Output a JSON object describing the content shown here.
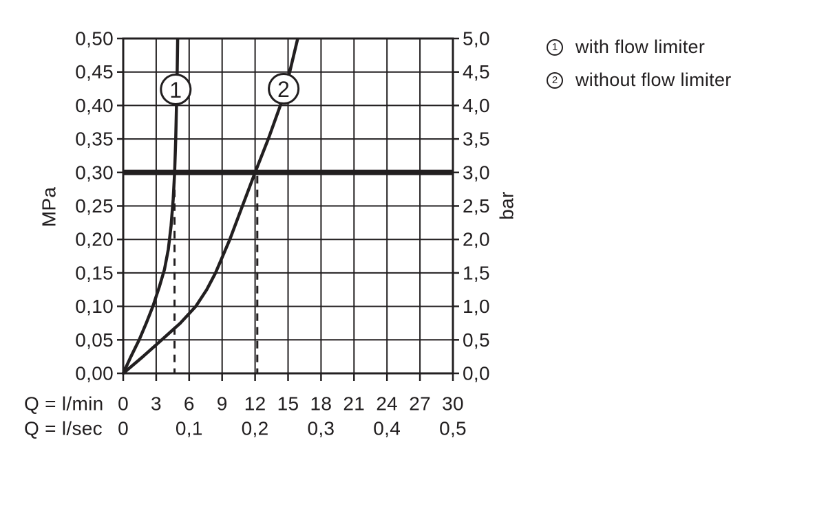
{
  "page": {
    "background": "#ffffff",
    "ink": "#221f20"
  },
  "legend": {
    "items": [
      {
        "symbol": "1",
        "label": "with flow limiter"
      },
      {
        "symbol": "2",
        "label": "without flow limiter"
      }
    ]
  },
  "chart_data": {
    "type": "line",
    "title": "",
    "grid": true,
    "legend_position": "top-right",
    "x_axis": {
      "row1_label": "Q = l/min",
      "row1_ticks": [
        {
          "x": 0,
          "label": "0"
        },
        {
          "x": 3,
          "label": "3"
        },
        {
          "x": 6,
          "label": "6"
        },
        {
          "x": 9,
          "label": "9"
        },
        {
          "x": 12,
          "label": "12"
        },
        {
          "x": 15,
          "label": "15"
        },
        {
          "x": 18,
          "label": "18"
        },
        {
          "x": 21,
          "label": "21"
        },
        {
          "x": 24,
          "label": "24"
        },
        {
          "x": 27,
          "label": "27"
        },
        {
          "x": 30,
          "label": "30"
        }
      ],
      "row2_label": "Q = l/sec",
      "row2_ticks": [
        {
          "x": 0,
          "label": "0"
        },
        {
          "x": 6,
          "label": "0,1"
        },
        {
          "x": 12,
          "label": "0,2"
        },
        {
          "x": 18,
          "label": "0,3"
        },
        {
          "x": 24,
          "label": "0,4"
        },
        {
          "x": 30,
          "label": "0,5"
        }
      ],
      "range": [
        0,
        30
      ],
      "gridline_step": 3
    },
    "y_axis_left": {
      "unit": "MPa",
      "range": [
        0,
        0.5
      ],
      "gridline_step": 0.05,
      "ticks": [
        {
          "y": 0.5,
          "label": "0,50"
        },
        {
          "y": 0.45,
          "label": "0,45"
        },
        {
          "y": 0.4,
          "label": "0,40"
        },
        {
          "y": 0.35,
          "label": "0,35"
        },
        {
          "y": 0.3,
          "label": "0,30"
        },
        {
          "y": 0.25,
          "label": "0,25"
        },
        {
          "y": 0.2,
          "label": "0,20"
        },
        {
          "y": 0.15,
          "label": "0,15"
        },
        {
          "y": 0.1,
          "label": "0,10"
        },
        {
          "y": 0.05,
          "label": "0,05"
        },
        {
          "y": 0.0,
          "label": "0,00"
        }
      ]
    },
    "y_axis_right": {
      "unit": "bar",
      "range": [
        0,
        5
      ],
      "gridline_step": 0.5,
      "ticks": [
        {
          "y": 5.0,
          "label": "5,0"
        },
        {
          "y": 4.5,
          "label": "4,5"
        },
        {
          "y": 4.0,
          "label": "4,0"
        },
        {
          "y": 3.5,
          "label": "3,5"
        },
        {
          "y": 3.0,
          "label": "3,0"
        },
        {
          "y": 2.5,
          "label": "2,5"
        },
        {
          "y": 2.0,
          "label": "2,0"
        },
        {
          "y": 1.5,
          "label": "1,5"
        },
        {
          "y": 1.0,
          "label": "1,0"
        },
        {
          "y": 0.5,
          "label": "0,5"
        },
        {
          "y": 0.0,
          "label": "0,0"
        }
      ]
    },
    "reference_line": {
      "mpa": 0.3,
      "bar": 3.0
    },
    "dashed_guides_lmin": [
      4.67,
      12.2
    ],
    "series": [
      {
        "marker": "1",
        "name": "with flow limiter",
        "flow_at_3bar_lmin": 4.7,
        "marker_pos": [
          4.78,
          0.424
        ],
        "points_lmin_mpa": [
          [
            0,
            0
          ],
          [
            0.7,
            0.025
          ],
          [
            1.45,
            0.05
          ],
          [
            2.1,
            0.075
          ],
          [
            2.7,
            0.1
          ],
          [
            3.3,
            0.13
          ],
          [
            3.75,
            0.155
          ],
          [
            4.1,
            0.185
          ],
          [
            4.35,
            0.22
          ],
          [
            4.55,
            0.26
          ],
          [
            4.68,
            0.3
          ],
          [
            4.78,
            0.35
          ],
          [
            4.85,
            0.4
          ],
          [
            4.91,
            0.45
          ],
          [
            4.96,
            0.505
          ]
        ]
      },
      {
        "marker": "2",
        "name": "without flow limiter",
        "flow_at_3bar_lmin": 12.1,
        "marker_pos": [
          14.6,
          0.425
        ],
        "points_lmin_mpa": [
          [
            0,
            0
          ],
          [
            1.8,
            0.025
          ],
          [
            3.5,
            0.05
          ],
          [
            5.2,
            0.075
          ],
          [
            6.6,
            0.1
          ],
          [
            7.6,
            0.125
          ],
          [
            8.4,
            0.15
          ],
          [
            9.7,
            0.2
          ],
          [
            10.85,
            0.25
          ],
          [
            12.0,
            0.3
          ],
          [
            13.2,
            0.35
          ],
          [
            14.3,
            0.4
          ],
          [
            15.15,
            0.45
          ],
          [
            15.95,
            0.505
          ]
        ]
      }
    ]
  }
}
